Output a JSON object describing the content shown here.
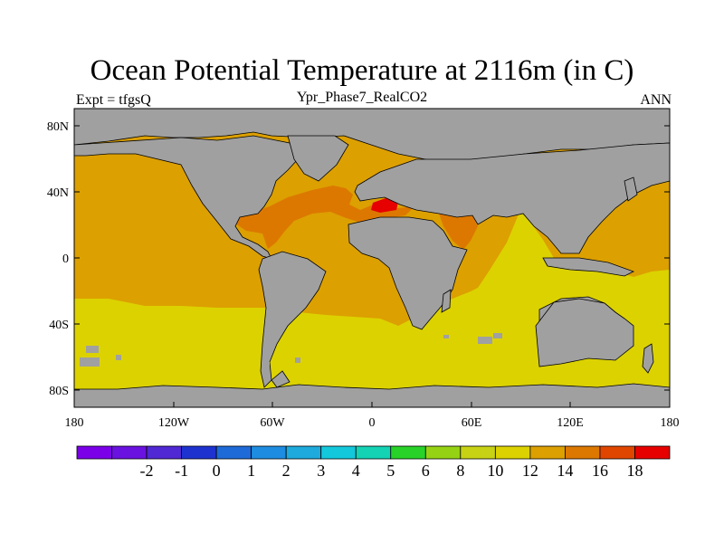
{
  "title": "Ocean Potential Temperature at 2116m (in C)",
  "subtitle": "Ypr_Phase7_RealCO2",
  "left_label": "Expt = tfgsQ",
  "right_label": "ANN",
  "map": {
    "lon_range": [
      -180,
      180
    ],
    "lat_range": [
      -90,
      90
    ],
    "x_ticks": [
      {
        "value": -180,
        "label": "180"
      },
      {
        "value": -120,
        "label": "120W"
      },
      {
        "value": -60,
        "label": "60W"
      },
      {
        "value": 0,
        "label": "0"
      },
      {
        "value": 60,
        "label": "60E"
      },
      {
        "value": 120,
        "label": "120E"
      },
      {
        "value": 180,
        "label": "180"
      }
    ],
    "y_ticks": [
      {
        "value": 80,
        "label": "80N"
      },
      {
        "value": 40,
        "label": "40N"
      },
      {
        "value": 0,
        "label": "0"
      },
      {
        "value": -40,
        "label": "40S"
      },
      {
        "value": -80,
        "label": "80S"
      }
    ],
    "land_color": "#a0a0a0"
  },
  "colorbar": {
    "colors": [
      "#7b00e8",
      "#6a12e0",
      "#5028d4",
      "#1e32d0",
      "#1e6ad8",
      "#1e8ce0",
      "#1eaadc",
      "#14c8dc",
      "#14d2b4",
      "#28d228",
      "#96d214",
      "#c8d214",
      "#dcd200",
      "#dca000",
      "#dc7800",
      "#e04600",
      "#e60000"
    ],
    "labels": [
      "-2",
      "-1",
      "0",
      "1",
      "2",
      "3",
      "4",
      "5",
      "6",
      "8",
      "10",
      "12",
      "14",
      "16",
      "18"
    ]
  }
}
